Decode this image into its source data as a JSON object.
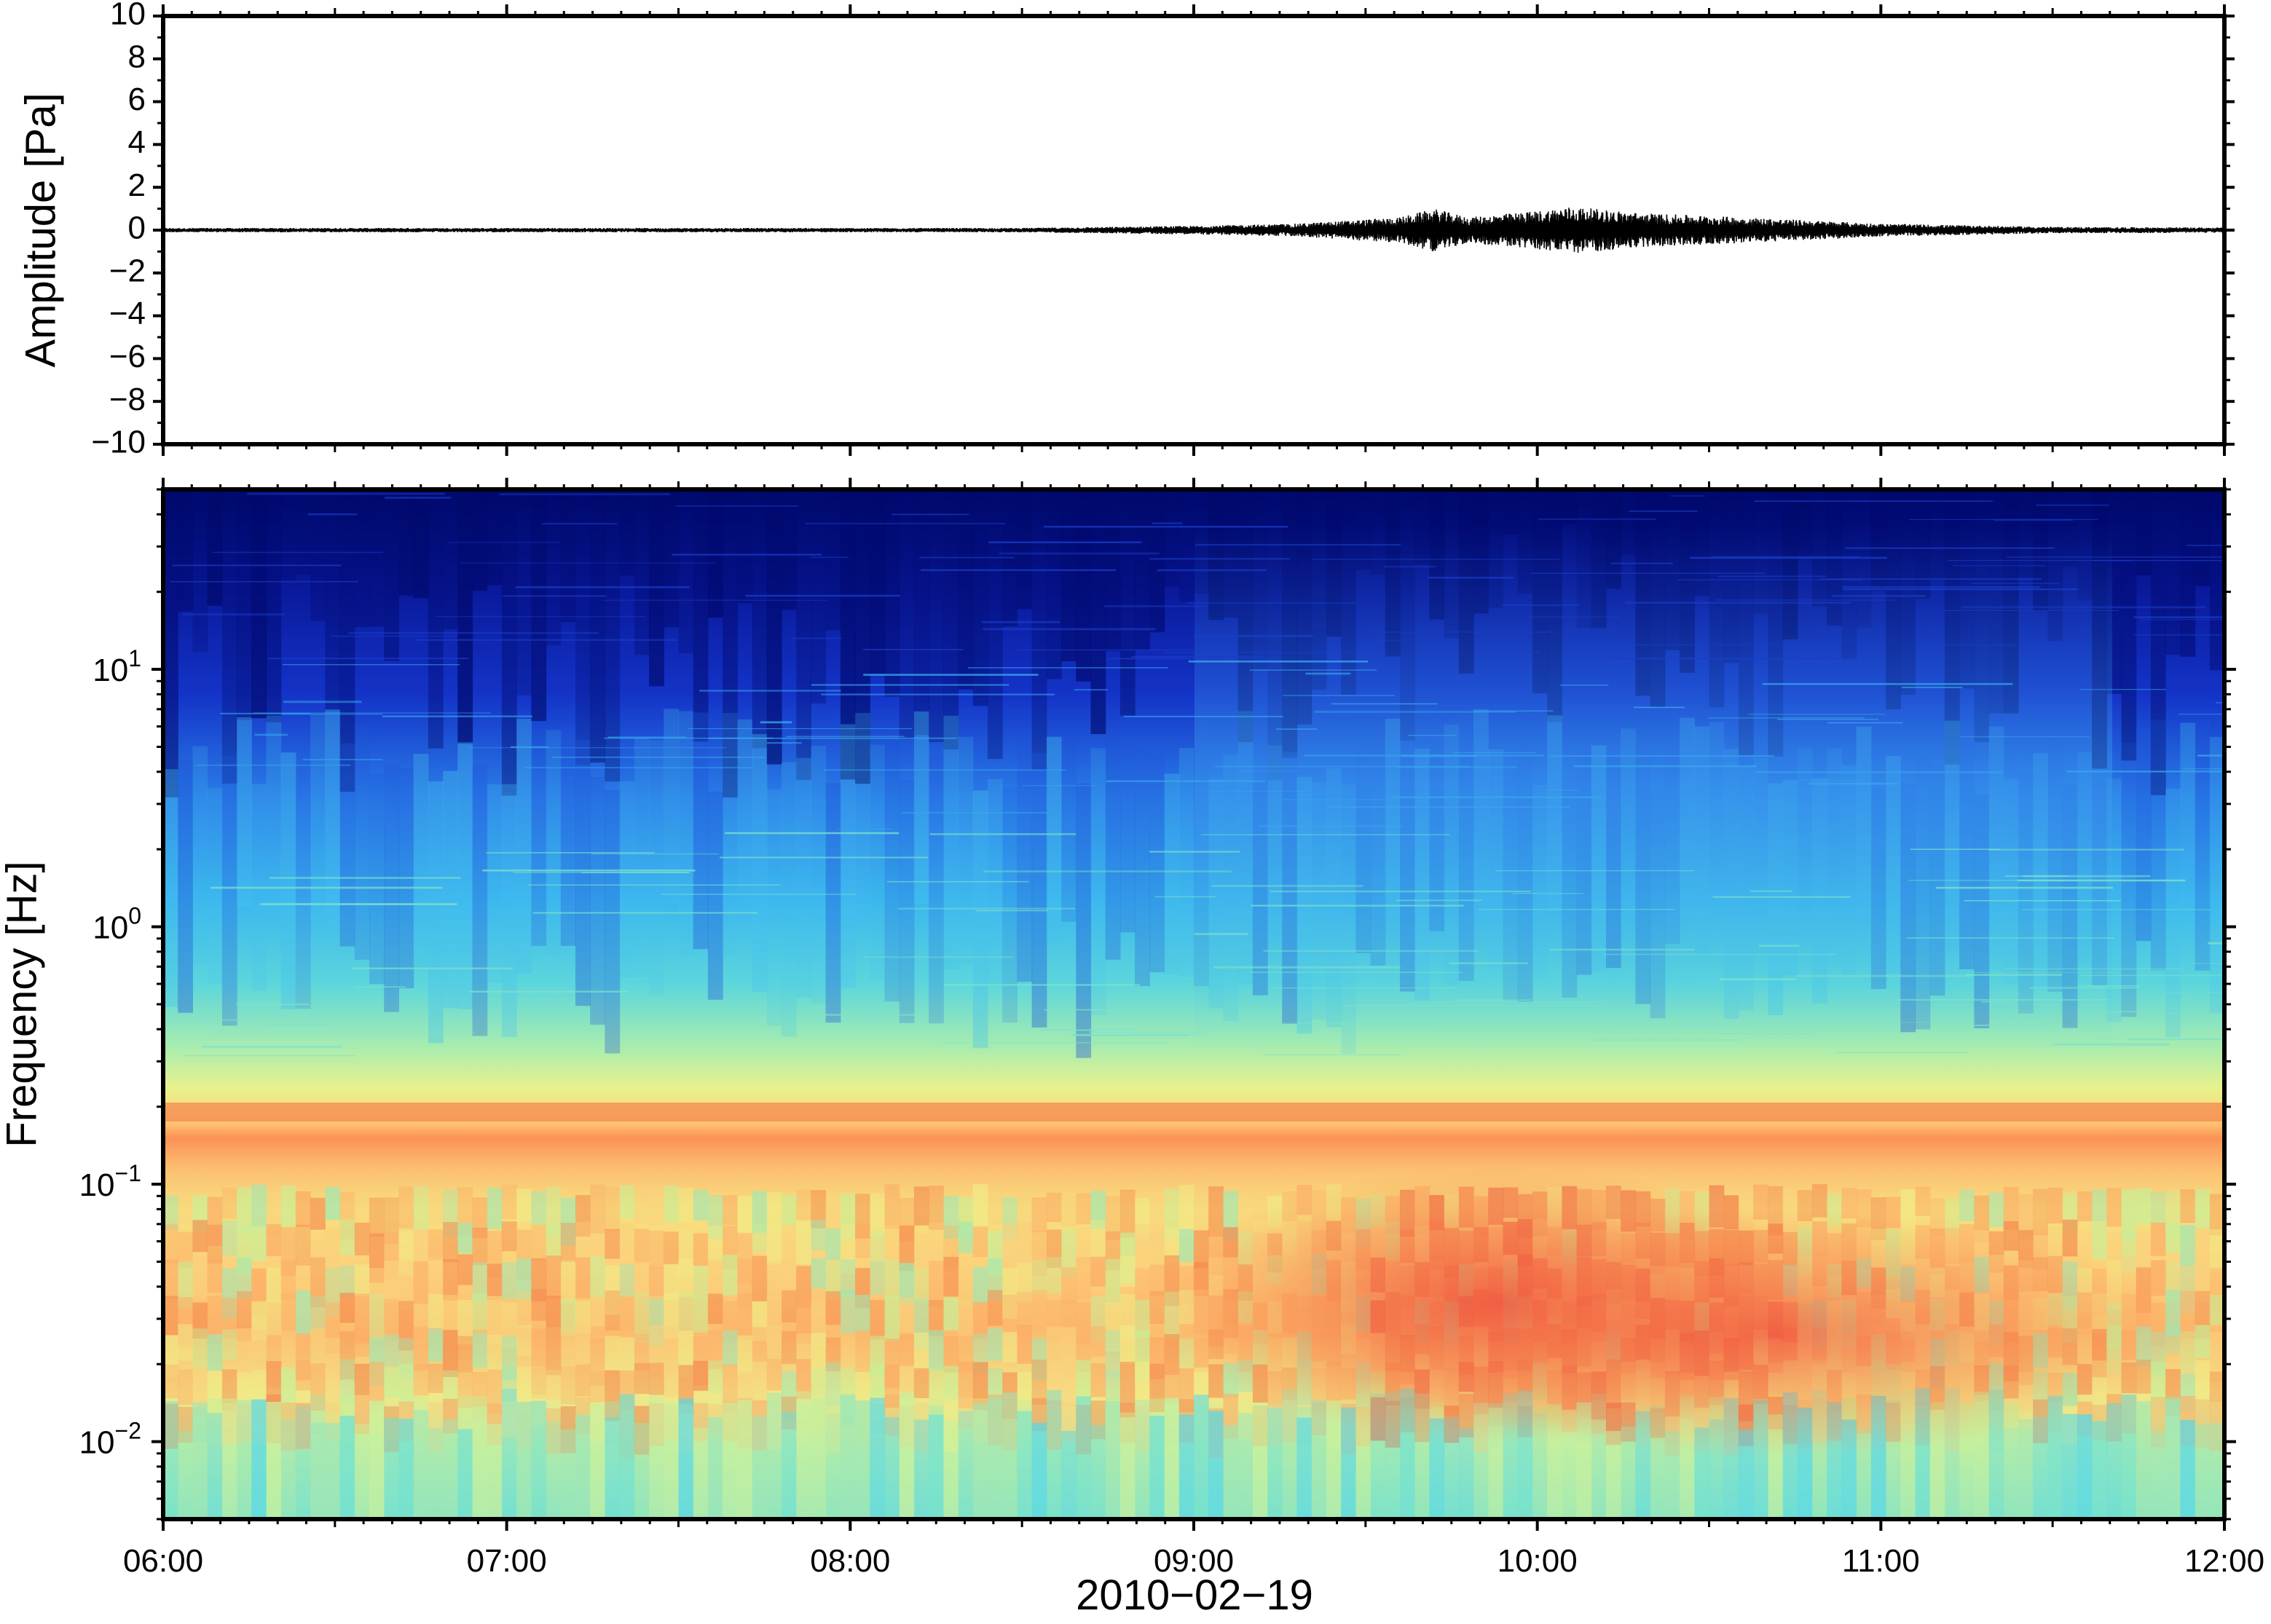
{
  "chart_data": [
    {
      "type": "line",
      "ylabel": "Amplitude [Pa]",
      "ylim": [
        -10,
        10
      ],
      "y_ticks": [
        "10",
        "8",
        "6",
        "4",
        "2",
        "0",
        "−2",
        "−4",
        "−6",
        "−8",
        "−10"
      ],
      "x_range": [
        "2010-02-19 06:00",
        "2010-02-19 12:00"
      ],
      "envelope": {
        "times_h": [
          6.0,
          6.5,
          7.0,
          7.5,
          8.0,
          8.5,
          9.0,
          9.3,
          9.6,
          9.7,
          9.8,
          10.0,
          10.1,
          10.3,
          10.6,
          11.0,
          11.5,
          12.0
        ],
        "amplitude_pa": [
          0.1,
          0.1,
          0.1,
          0.1,
          0.1,
          0.1,
          0.2,
          0.3,
          0.6,
          1.0,
          0.6,
          0.9,
          1.1,
          0.8,
          0.6,
          0.3,
          0.15,
          0.12
        ]
      }
    },
    {
      "type": "heatmap",
      "ylabel": "Frequency [Hz]",
      "xlabel": "2010−02−19",
      "y_scale": "log",
      "ylim_hz": [
        0.005,
        50
      ],
      "y_ticks": [
        {
          "base": "10",
          "exp": "−2",
          "value": 0.01
        },
        {
          "base": "10",
          "exp": "−1",
          "value": 0.1
        },
        {
          "base": "10",
          "exp": "0",
          "value": 1
        },
        {
          "base": "10",
          "exp": "1",
          "value": 10
        }
      ],
      "x_ticks": [
        "06:00",
        "07:00",
        "08:00",
        "09:00",
        "10:00",
        "11:00",
        "12:00"
      ],
      "colormap": [
        "#000a73",
        "#0a1fb8",
        "#1f5ee6",
        "#2fa6ef",
        "#53d3e3",
        "#8ee6c0",
        "#cff090",
        "#ffd57a",
        "#ff9a52",
        "#ef4a3f",
        "#b2182b"
      ],
      "features": {
        "microseism_band_hz": 0.19,
        "high_activity_window": [
          "09:00",
          "10:30"
        ]
      }
    }
  ]
}
